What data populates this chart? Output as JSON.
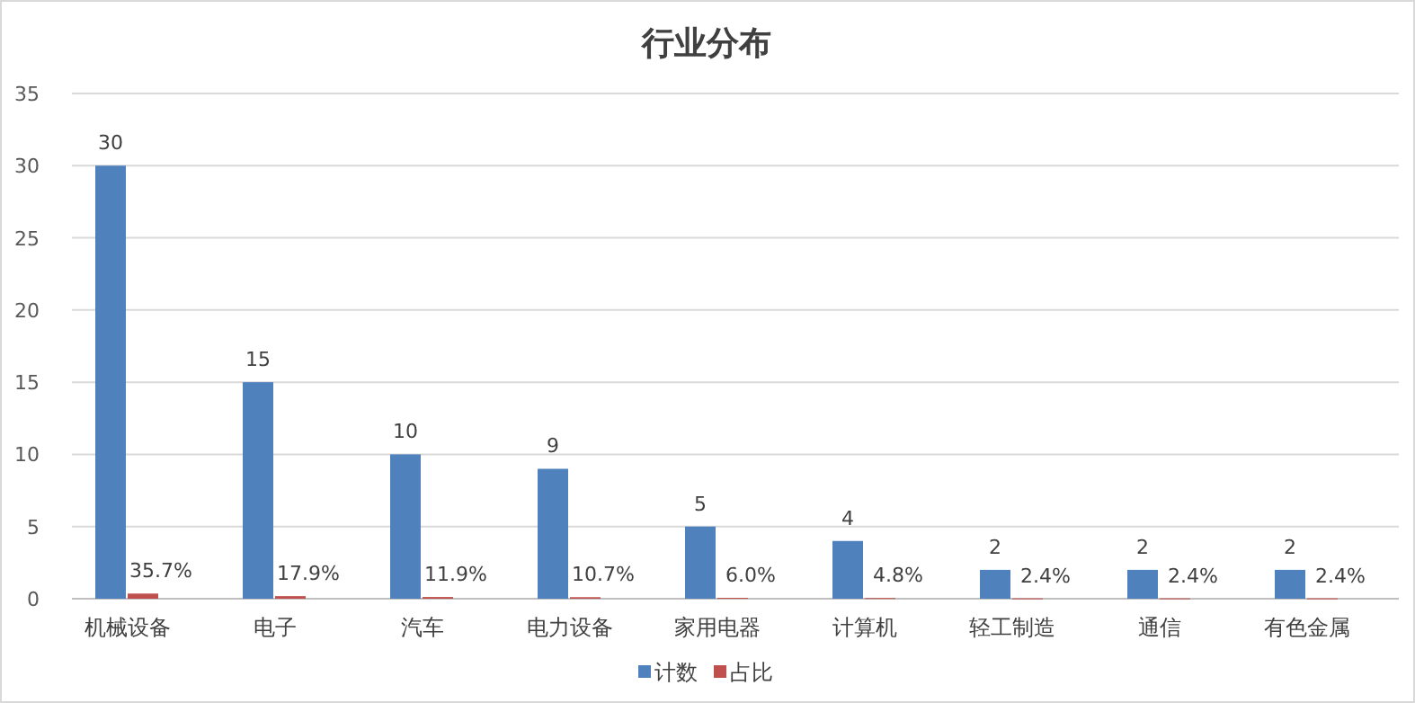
{
  "chart_data": {
    "type": "bar",
    "title": "行业分布",
    "categories": [
      "机械设备",
      "电子",
      "汽车",
      "电力设备",
      "家用电器",
      "计算机",
      "轻工制造",
      "通信",
      "有色金属"
    ],
    "series": [
      {
        "name": "计数",
        "color": "#4f81bd",
        "values": [
          30,
          15,
          10,
          9,
          5,
          4,
          2,
          2,
          2
        ],
        "value_labels": [
          "30",
          "15",
          "10",
          "9",
          "5",
          "4",
          "2",
          "2",
          "2"
        ]
      },
      {
        "name": "占比",
        "color": "#c0504d",
        "values": [
          0.357,
          0.179,
          0.119,
          0.107,
          0.06,
          0.048,
          0.024,
          0.024,
          0.024
        ],
        "value_labels": [
          "35.7%",
          "17.9%",
          "11.9%",
          "10.7%",
          "6.0%",
          "4.8%",
          "2.4%",
          "2.4%",
          "2.4%"
        ]
      }
    ],
    "ylim": [
      0,
      35
    ],
    "yticks": [
      0,
      5,
      10,
      15,
      20,
      25,
      30,
      35
    ],
    "grid": "y",
    "legend": "bottom"
  }
}
